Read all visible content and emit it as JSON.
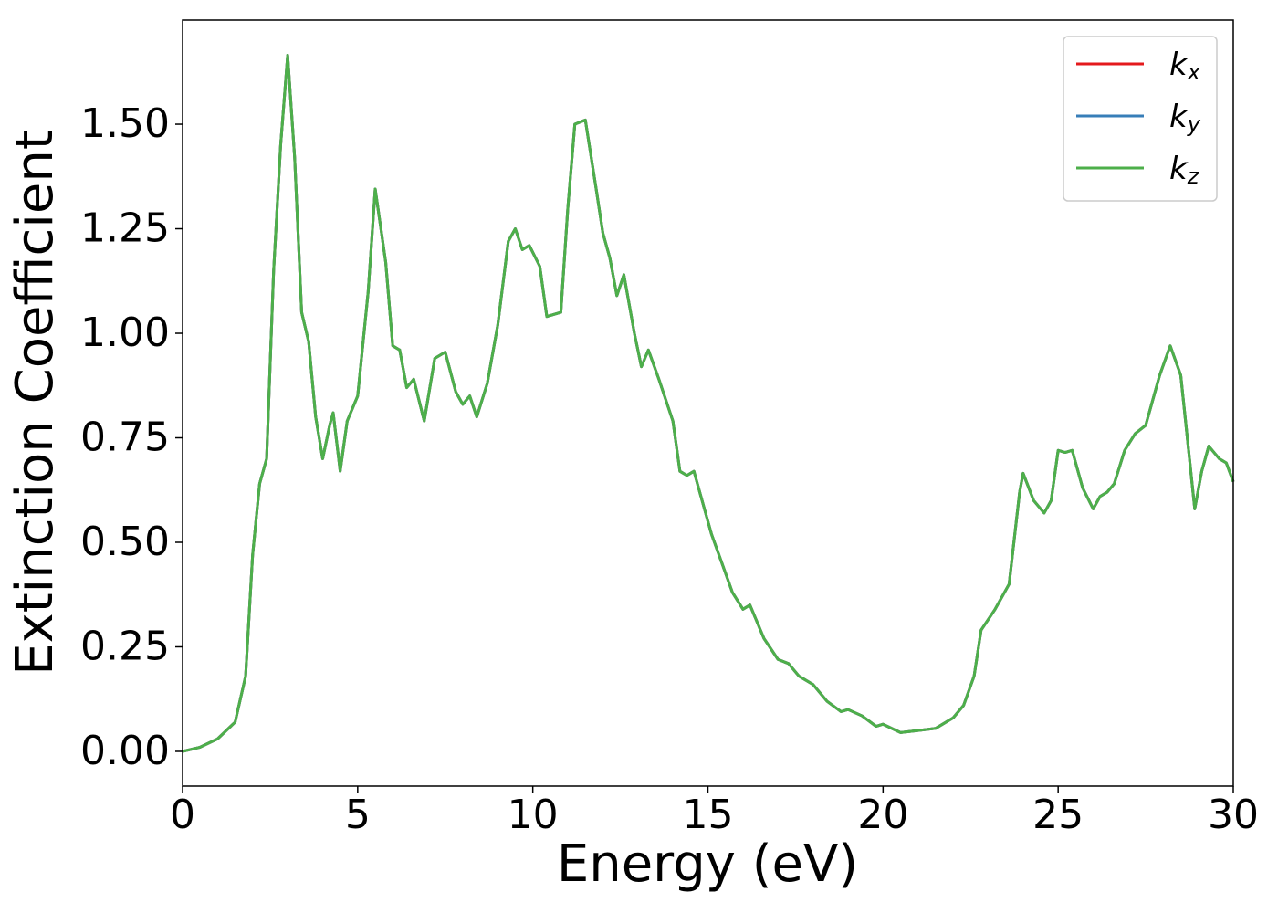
{
  "chart_data": {
    "type": "line",
    "xlabel": "Energy (eV)",
    "ylabel": "Extinction Coefficient",
    "xlim": [
      0,
      30
    ],
    "ylim": [
      -0.083,
      1.749
    ],
    "xticks": [
      0,
      5,
      10,
      15,
      20,
      25,
      30
    ],
    "yticks": [
      {
        "value": 0,
        "label": "0.00"
      },
      {
        "value": 0.25,
        "label": "0.25"
      },
      {
        "value": 0.5,
        "label": "0.50"
      },
      {
        "value": 0.75,
        "label": "0.75"
      },
      {
        "value": 1.0,
        "label": "1.00"
      },
      {
        "value": 1.25,
        "label": "1.25"
      },
      {
        "value": 1.5,
        "label": "1.50"
      }
    ],
    "legend": "upper right",
    "x": [
      0,
      0.5,
      1.0,
      1.5,
      1.8,
      2.0,
      2.2,
      2.4,
      2.6,
      2.8,
      3.0,
      3.2,
      3.4,
      3.6,
      3.8,
      4.0,
      4.2,
      4.3,
      4.5,
      4.7,
      5.0,
      5.3,
      5.5,
      5.8,
      6.0,
      6.2,
      6.4,
      6.6,
      6.9,
      7.2,
      7.5,
      7.8,
      8.0,
      8.2,
      8.4,
      8.7,
      9.0,
      9.3,
      9.5,
      9.7,
      9.9,
      10.2,
      10.4,
      10.8,
      11.0,
      11.2,
      11.5,
      11.8,
      12.0,
      12.2,
      12.4,
      12.6,
      12.9,
      13.1,
      13.3,
      13.6,
      14.0,
      14.2,
      14.4,
      14.6,
      14.9,
      15.1,
      15.4,
      15.7,
      16.0,
      16.2,
      16.6,
      17.0,
      17.3,
      17.6,
      18.0,
      18.4,
      18.8,
      19.0,
      19.4,
      19.8,
      20.0,
      20.5,
      21.0,
      21.5,
      22.0,
      22.3,
      22.6,
      22.8,
      23.2,
      23.6,
      23.9,
      24.0,
      24.3,
      24.6,
      24.8,
      25.0,
      25.2,
      25.4,
      25.7,
      26.0,
      26.2,
      26.4,
      26.6,
      26.9,
      27.2,
      27.5,
      27.9,
      28.2,
      28.5,
      28.9,
      29.1,
      29.3,
      29.6,
      29.8,
      30.0
    ],
    "series": [
      {
        "name": "kx",
        "color": "#e41a1c",
        "values": [
          0,
          0.01,
          0.03,
          0.07,
          0.18,
          0.47,
          0.64,
          0.7,
          1.15,
          1.45,
          1.665,
          1.42,
          1.05,
          0.98,
          0.8,
          0.7,
          0.78,
          0.81,
          0.67,
          0.79,
          0.85,
          1.1,
          1.345,
          1.17,
          0.97,
          0.96,
          0.87,
          0.89,
          0.79,
          0.94,
          0.955,
          0.86,
          0.83,
          0.85,
          0.8,
          0.88,
          1.02,
          1.22,
          1.25,
          1.2,
          1.21,
          1.16,
          1.04,
          1.05,
          1.3,
          1.5,
          1.51,
          1.35,
          1.24,
          1.18,
          1.09,
          1.14,
          1.0,
          0.92,
          0.96,
          0.89,
          0.79,
          0.67,
          0.66,
          0.67,
          0.58,
          0.52,
          0.45,
          0.38,
          0.34,
          0.35,
          0.27,
          0.22,
          0.21,
          0.18,
          0.16,
          0.12,
          0.095,
          0.1,
          0.085,
          0.06,
          0.065,
          0.045,
          0.05,
          0.055,
          0.08,
          0.11,
          0.18,
          0.29,
          0.34,
          0.4,
          0.62,
          0.665,
          0.6,
          0.57,
          0.6,
          0.72,
          0.715,
          0.72,
          0.63,
          0.58,
          0.61,
          0.62,
          0.64,
          0.72,
          0.76,
          0.78,
          0.9,
          0.97,
          0.9,
          0.58,
          0.67,
          0.73,
          0.7,
          0.69,
          0.645
        ]
      },
      {
        "name": "ky",
        "color": "#377eb8",
        "values": [
          0,
          0.01,
          0.03,
          0.07,
          0.18,
          0.47,
          0.64,
          0.7,
          1.15,
          1.45,
          1.665,
          1.42,
          1.05,
          0.98,
          0.8,
          0.7,
          0.78,
          0.81,
          0.67,
          0.79,
          0.85,
          1.1,
          1.345,
          1.17,
          0.97,
          0.96,
          0.87,
          0.89,
          0.79,
          0.94,
          0.955,
          0.86,
          0.83,
          0.85,
          0.8,
          0.88,
          1.02,
          1.22,
          1.25,
          1.2,
          1.21,
          1.16,
          1.04,
          1.05,
          1.3,
          1.5,
          1.51,
          1.35,
          1.24,
          1.18,
          1.09,
          1.14,
          1.0,
          0.92,
          0.96,
          0.89,
          0.79,
          0.67,
          0.66,
          0.67,
          0.58,
          0.52,
          0.45,
          0.38,
          0.34,
          0.35,
          0.27,
          0.22,
          0.21,
          0.18,
          0.16,
          0.12,
          0.095,
          0.1,
          0.085,
          0.06,
          0.065,
          0.045,
          0.05,
          0.055,
          0.08,
          0.11,
          0.18,
          0.29,
          0.34,
          0.4,
          0.62,
          0.665,
          0.6,
          0.57,
          0.6,
          0.72,
          0.715,
          0.72,
          0.63,
          0.58,
          0.61,
          0.62,
          0.64,
          0.72,
          0.76,
          0.78,
          0.9,
          0.97,
          0.9,
          0.58,
          0.67,
          0.73,
          0.7,
          0.69,
          0.645
        ]
      },
      {
        "name": "kz",
        "color": "#4daf4a",
        "values": [
          0,
          0.01,
          0.03,
          0.07,
          0.18,
          0.47,
          0.64,
          0.7,
          1.15,
          1.45,
          1.665,
          1.42,
          1.05,
          0.98,
          0.8,
          0.7,
          0.78,
          0.81,
          0.67,
          0.79,
          0.85,
          1.1,
          1.345,
          1.17,
          0.97,
          0.96,
          0.87,
          0.89,
          0.79,
          0.94,
          0.955,
          0.86,
          0.83,
          0.85,
          0.8,
          0.88,
          1.02,
          1.22,
          1.25,
          1.2,
          1.21,
          1.16,
          1.04,
          1.05,
          1.3,
          1.5,
          1.51,
          1.35,
          1.24,
          1.18,
          1.09,
          1.14,
          1.0,
          0.92,
          0.96,
          0.89,
          0.79,
          0.67,
          0.66,
          0.67,
          0.58,
          0.52,
          0.45,
          0.38,
          0.34,
          0.35,
          0.27,
          0.22,
          0.21,
          0.18,
          0.16,
          0.12,
          0.095,
          0.1,
          0.085,
          0.06,
          0.065,
          0.045,
          0.05,
          0.055,
          0.08,
          0.11,
          0.18,
          0.29,
          0.34,
          0.4,
          0.62,
          0.665,
          0.6,
          0.57,
          0.6,
          0.72,
          0.715,
          0.72,
          0.63,
          0.58,
          0.61,
          0.62,
          0.64,
          0.72,
          0.76,
          0.78,
          0.9,
          0.97,
          0.9,
          0.58,
          0.67,
          0.73,
          0.7,
          0.69,
          0.645
        ]
      }
    ]
  }
}
